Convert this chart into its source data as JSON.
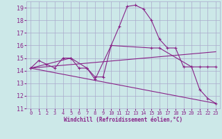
{
  "xlabel": "Windchill (Refroidissement éolien,°C)",
  "xlim": [
    -0.5,
    23.5
  ],
  "ylim": [
    11,
    19.5
  ],
  "yticks": [
    11,
    12,
    13,
    14,
    15,
    16,
    17,
    18,
    19
  ],
  "xticks": [
    0,
    1,
    2,
    3,
    4,
    5,
    6,
    7,
    8,
    9,
    10,
    11,
    12,
    13,
    14,
    15,
    16,
    17,
    18,
    19,
    20,
    21,
    22,
    23
  ],
  "bg_color": "#cce8e8",
  "grid_color": "#aaaacc",
  "line_color": "#882288",
  "lines": [
    {
      "x": [
        0,
        1,
        2,
        3,
        4,
        5,
        6,
        7,
        8,
        9,
        10,
        11,
        12,
        13,
        14,
        15,
        16,
        17,
        18,
        19,
        20,
        21,
        22,
        23
      ],
      "y": [
        14.2,
        14.8,
        14.5,
        14.2,
        15.0,
        15.0,
        14.2,
        14.2,
        13.5,
        13.5,
        16.0,
        17.5,
        19.1,
        19.2,
        18.9,
        18.0,
        16.5,
        15.8,
        15.8,
        14.3,
        14.3,
        12.5,
        11.8,
        11.4
      ],
      "marker": true
    },
    {
      "x": [
        0,
        5,
        7,
        8,
        10,
        15,
        16,
        20,
        21,
        22,
        23
      ],
      "y": [
        14.2,
        15.0,
        14.2,
        13.3,
        16.0,
        15.8,
        15.8,
        14.3,
        14.3,
        14.3,
        14.3
      ],
      "marker": true
    },
    {
      "x": [
        0,
        23
      ],
      "y": [
        14.2,
        15.5
      ],
      "marker": false
    },
    {
      "x": [
        0,
        23
      ],
      "y": [
        14.2,
        11.4
      ],
      "marker": false
    }
  ]
}
